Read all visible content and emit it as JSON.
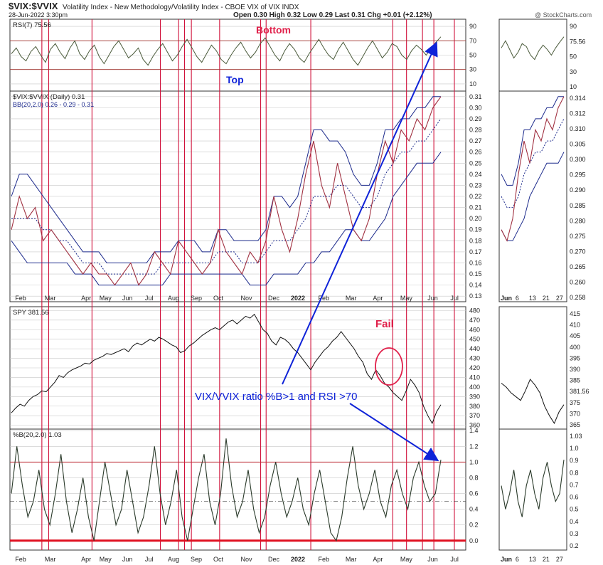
{
  "header": {
    "symbol": "$VIX:$VVIX",
    "description": "Volatility Index - New Methodology/Volatility Index - CBOE VIX of VIX INDX",
    "date": "28-Jun-2022 3:30pm",
    "ohlc": "Open 0.30  High 0.32  Low 0.29  Last 0.31  Chg +0.01 (+2.12%)",
    "watermark": "@ StockCharts.com"
  },
  "annotations": {
    "bottom": "Bottom",
    "top": "Top",
    "fail": "Fail",
    "signal": "VIX/VVIX ratio %B>1 and RSI >70"
  },
  "colors": {
    "grid": "#c8c8c8",
    "vline": "#d0103a",
    "signal_blue": "#0f23d8",
    "annot_red": "#e0204a",
    "price": "#111111",
    "rsi_line": "#4a5a3a",
    "band": "#1c2a8c",
    "ratio": "#a03040",
    "pctb_line": "#2a3a2a",
    "red_level": "#e01020"
  },
  "chart_data": [
    {
      "type": "line",
      "panel": "rsi",
      "legend": "RSI(7) 75.56",
      "ylim": [
        0,
        100
      ],
      "yticks": [
        "90",
        "70",
        "50",
        "30",
        "10"
      ],
      "reference_lines": [
        70,
        30
      ],
      "series": [
        {
          "name": "RSI(7)",
          "last": 75.56,
          "values": [
            52,
            60,
            48,
            42,
            55,
            62,
            50,
            40,
            58,
            66,
            54,
            45,
            60,
            70,
            52,
            44,
            56,
            64,
            48,
            38,
            50,
            62,
            70,
            58,
            46,
            52,
            60,
            44,
            36,
            48,
            58,
            66,
            54,
            42,
            50,
            62,
            72,
            60,
            48,
            40,
            52,
            64,
            56,
            44,
            38,
            50,
            60,
            68,
            56,
            46,
            54,
            66,
            74,
            62,
            50,
            42,
            56,
            66,
            58,
            46,
            40,
            52,
            62,
            72,
            60,
            50,
            44,
            58,
            68,
            56,
            44,
            36,
            48,
            60,
            70,
            58,
            46,
            54,
            66,
            62,
            50,
            44,
            56,
            64,
            58,
            50,
            60,
            68,
            75.56
          ]
        }
      ],
      "x_labels": [
        "Feb",
        "Mar",
        "Apr",
        "May",
        "Jun",
        "Jul",
        "Aug",
        "Sep",
        "Oct",
        "Nov",
        "Dec",
        "2022",
        "Feb",
        "Mar",
        "Apr",
        "May",
        "Jun",
        "Jul"
      ]
    },
    {
      "type": "line",
      "panel": "ratio",
      "legend": "$VIX:$VVIX (Daily) 0.31",
      "legend2": "BB(20,2.0) 0.26 - 0.29 - 0.31",
      "ylim": [
        0.13,
        0.31
      ],
      "yticks": [
        "0.31",
        "0.30",
        "0.29",
        "0.28",
        "0.27",
        "0.26",
        "0.25",
        "0.24",
        "0.23",
        "0.22",
        "0.21",
        "0.20",
        "0.19",
        "0.18",
        "0.17",
        "0.16",
        "0.15",
        "0.14",
        "0.13"
      ],
      "series": [
        {
          "name": "$VIX:$VVIX",
          "values": [
            0.19,
            0.22,
            0.2,
            0.21,
            0.18,
            0.19,
            0.18,
            0.17,
            0.16,
            0.15,
            0.16,
            0.15,
            0.15,
            0.14,
            0.15,
            0.16,
            0.14,
            0.15,
            0.17,
            0.16,
            0.15,
            0.18,
            0.17,
            0.16,
            0.15,
            0.16,
            0.19,
            0.17,
            0.16,
            0.15,
            0.17,
            0.16,
            0.18,
            0.22,
            0.19,
            0.17,
            0.2,
            0.24,
            0.27,
            0.23,
            0.21,
            0.25,
            0.22,
            0.19,
            0.18,
            0.2,
            0.24,
            0.27,
            0.25,
            0.28,
            0.27,
            0.29,
            0.28,
            0.3,
            0.31
          ]
        },
        {
          "name": "BB upper",
          "values": [
            0.22,
            0.24,
            0.24,
            0.23,
            0.22,
            0.21,
            0.2,
            0.19,
            0.18,
            0.17,
            0.17,
            0.17,
            0.16,
            0.16,
            0.16,
            0.16,
            0.16,
            0.16,
            0.17,
            0.17,
            0.17,
            0.18,
            0.18,
            0.18,
            0.17,
            0.17,
            0.19,
            0.19,
            0.18,
            0.18,
            0.18,
            0.18,
            0.19,
            0.22,
            0.22,
            0.21,
            0.22,
            0.25,
            0.28,
            0.28,
            0.27,
            0.27,
            0.26,
            0.24,
            0.23,
            0.23,
            0.25,
            0.28,
            0.28,
            0.29,
            0.29,
            0.3,
            0.3,
            0.31,
            0.31
          ]
        },
        {
          "name": "BB middle",
          "values": [
            0.2,
            0.2,
            0.2,
            0.2,
            0.19,
            0.19,
            0.18,
            0.18,
            0.17,
            0.16,
            0.16,
            0.16,
            0.15,
            0.15,
            0.15,
            0.15,
            0.15,
            0.15,
            0.15,
            0.16,
            0.16,
            0.16,
            0.16,
            0.16,
            0.16,
            0.16,
            0.17,
            0.17,
            0.17,
            0.16,
            0.16,
            0.16,
            0.17,
            0.18,
            0.18,
            0.18,
            0.19,
            0.2,
            0.22,
            0.22,
            0.22,
            0.23,
            0.23,
            0.22,
            0.21,
            0.21,
            0.22,
            0.24,
            0.25,
            0.26,
            0.26,
            0.27,
            0.27,
            0.28,
            0.29
          ]
        },
        {
          "name": "BB lower",
          "values": [
            0.18,
            0.17,
            0.16,
            0.16,
            0.16,
            0.16,
            0.16,
            0.16,
            0.15,
            0.15,
            0.15,
            0.14,
            0.14,
            0.14,
            0.14,
            0.14,
            0.14,
            0.14,
            0.14,
            0.14,
            0.15,
            0.15,
            0.15,
            0.15,
            0.15,
            0.15,
            0.15,
            0.15,
            0.15,
            0.15,
            0.14,
            0.14,
            0.14,
            0.15,
            0.15,
            0.15,
            0.15,
            0.16,
            0.16,
            0.17,
            0.17,
            0.18,
            0.19,
            0.19,
            0.18,
            0.18,
            0.19,
            0.2,
            0.22,
            0.23,
            0.24,
            0.25,
            0.25,
            0.25,
            0.26
          ]
        }
      ]
    },
    {
      "type": "line",
      "panel": "price",
      "legend": "SPY 381.56",
      "ylim": [
        360,
        480
      ],
      "yticks": [
        "480",
        "470",
        "460",
        "450",
        "440",
        "430",
        "420",
        "410",
        "400",
        "390",
        "380",
        "370",
        "360"
      ],
      "series": [
        {
          "name": "SPY",
          "last": 381.56,
          "values": [
            373,
            378,
            382,
            380,
            386,
            390,
            392,
            396,
            395,
            400,
            405,
            412,
            410,
            415,
            418,
            420,
            422,
            425,
            424,
            428,
            430,
            432,
            435,
            434,
            436,
            438,
            440,
            437,
            443,
            446,
            444,
            447,
            450,
            448,
            452,
            450,
            447,
            444,
            442,
            436,
            438,
            443,
            446,
            450,
            454,
            457,
            460,
            462,
            460,
            464,
            468,
            470,
            466,
            470,
            474,
            472,
            476,
            468,
            460,
            456,
            448,
            444,
            452,
            450,
            446,
            440,
            436,
            430,
            424,
            418,
            426,
            432,
            438,
            442,
            448,
            452,
            458,
            452,
            446,
            440,
            432,
            426,
            414,
            408,
            418,
            412,
            404,
            400,
            394,
            390,
            386,
            396,
            408,
            402,
            394,
            380,
            370,
            362,
            374,
            381.56
          ]
        }
      ]
    },
    {
      "type": "line",
      "panel": "pctb",
      "legend": "%B(20,2.0) 1.03",
      "ylim": [
        -0.1,
        1.4
      ],
      "yticks": [
        "1.4",
        "1.2",
        "1.0",
        "0.8",
        "0.6",
        "0.4",
        "0.2",
        "0.0"
      ],
      "reference_lines": [
        1.0,
        0.5,
        0.0
      ],
      "series": [
        {
          "name": "%B(20,2.0)",
          "last": 1.03,
          "values": [
            0.6,
            1.2,
            0.7,
            0.3,
            0.5,
            0.9,
            0.4,
            0.2,
            0.6,
            1.1,
            0.5,
            0.1,
            0.4,
            0.8,
            0.3,
            0.0,
            0.5,
            1.0,
            0.6,
            0.2,
            0.4,
            0.9,
            0.5,
            0.1,
            0.3,
            0.7,
            1.2,
            0.6,
            0.2,
            0.5,
            0.9,
            0.3,
            0.0,
            0.4,
            0.8,
            1.1,
            0.5,
            0.2,
            0.6,
            1.3,
            0.7,
            0.3,
            0.5,
            0.9,
            0.4,
            0.1,
            0.3,
            0.7,
            1.0,
            0.6,
            0.3,
            0.5,
            0.8,
            0.4,
            0.2,
            0.6,
            0.9,
            0.5,
            0.1,
            0.0,
            0.3,
            0.8,
            1.2,
            0.7,
            0.4,
            0.6,
            0.9,
            0.5,
            0.3,
            0.7,
            0.9,
            0.6,
            0.4,
            0.8,
            1.0,
            0.7,
            0.5,
            0.6,
            1.03
          ]
        }
      ]
    },
    {
      "type": "line",
      "panel": "inset",
      "x_labels": [
        "Jun",
        "6",
        "13",
        "21",
        "27"
      ],
      "rsi_ticks": [
        "90",
        "75.56",
        "50",
        "30",
        "10"
      ],
      "ratio_ticks": [
        "0.314",
        "0.312",
        "0.310",
        "0.305",
        "0.300",
        "0.295",
        "0.290",
        "0.285",
        "0.280",
        "0.275",
        "0.270",
        "0.265",
        "0.260",
        "0.258"
      ],
      "price_ticks": [
        "415",
        "410",
        "405",
        "400",
        "395",
        "390",
        "385",
        "381.56",
        "375",
        "370",
        "365"
      ],
      "pctb_ticks": [
        "1.03",
        "1.0",
        "0.9",
        "0.8",
        "0.7",
        "0.6",
        "0.5",
        "0.4",
        "0.3",
        "0.2"
      ]
    }
  ]
}
